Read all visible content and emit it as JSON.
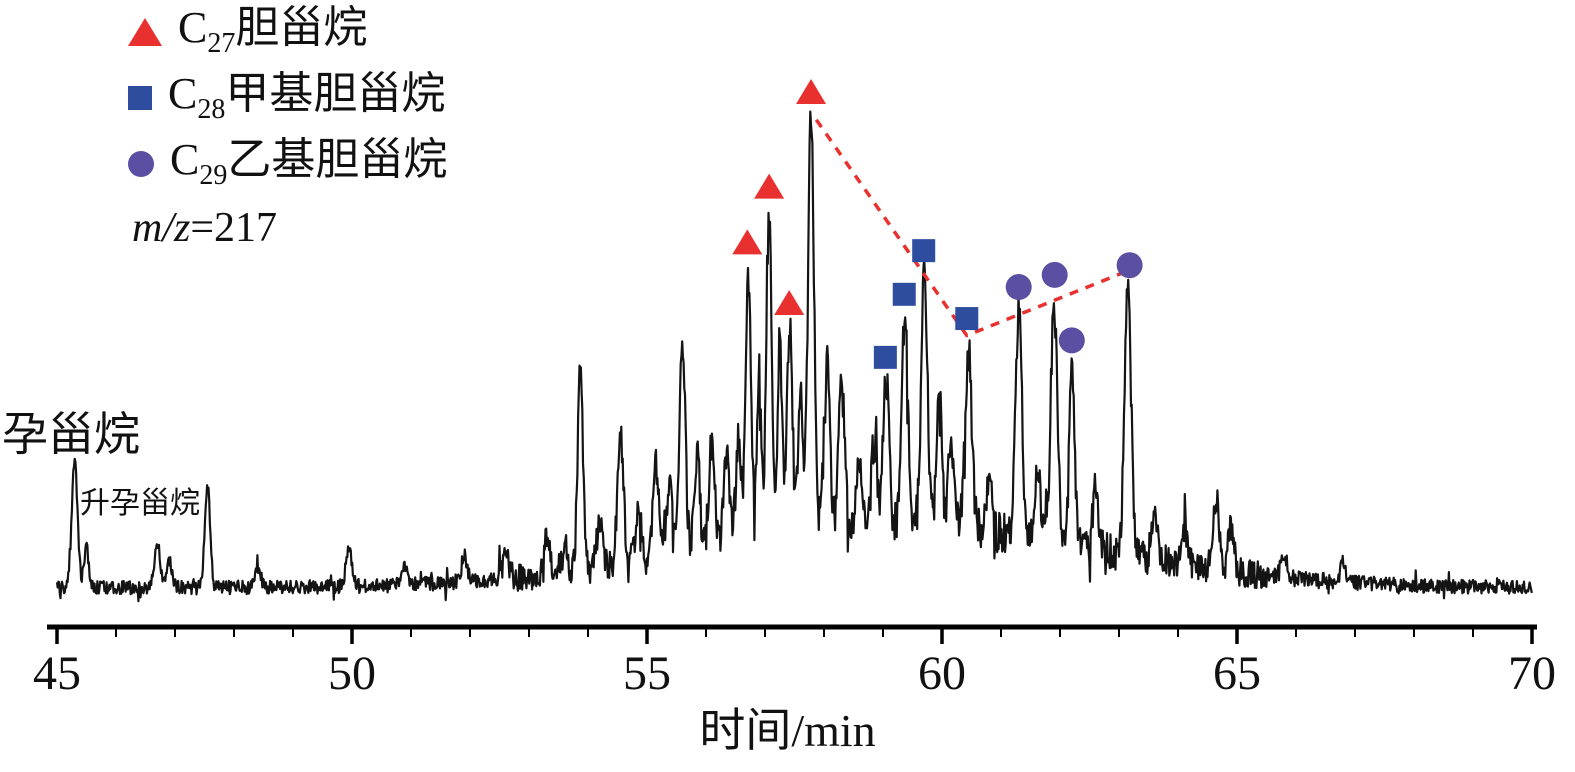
{
  "page": {
    "background": "#ffffff"
  },
  "legend": {
    "items": [
      {
        "marker": "triangle",
        "color": "#e8312f",
        "prefix": "C",
        "sub": "27",
        "name": "胆甾烷"
      },
      {
        "marker": "square",
        "color": "#2e4d9e",
        "prefix": "C",
        "sub": "28",
        "name": "甲基胆甾烷"
      },
      {
        "marker": "circle",
        "color": "#5a4fa2",
        "prefix": "C",
        "sub": "29",
        "name": "乙基胆甾烷"
      }
    ],
    "mz": {
      "italic": "m/z",
      "rest": "=217"
    }
  },
  "chart_data": {
    "type": "line",
    "title": "",
    "xlabel": "时间/min",
    "ylabel": "",
    "x_range": [
      45,
      70
    ],
    "x_ticks": [
      45,
      50,
      55,
      60,
      65,
      70
    ],
    "y_axis_shown": false,
    "grid": false,
    "trace_color": "#141414",
    "axis_color": "#000000",
    "annotations": [
      {
        "text": "孕甾烷",
        "t": 45.3
      },
      {
        "text": "升孕甾烷",
        "t": 45.75
      }
    ],
    "baseline": 1.5,
    "broad_hump": {
      "center": 59.3,
      "amplitude": 13,
      "sigma": 3.4
    },
    "noise_amplitude": 1.4,
    "peaks": [
      [
        45.3,
        26,
        0.05
      ],
      [
        45.5,
        8,
        0.04
      ],
      [
        46.7,
        9,
        0.05
      ],
      [
        46.9,
        6,
        0.04
      ],
      [
        47.55,
        21,
        0.045
      ],
      [
        48.4,
        4,
        0.05
      ],
      [
        49.95,
        8,
        0.05
      ],
      [
        50.9,
        4,
        0.05
      ],
      [
        51.9,
        5,
        0.05
      ],
      [
        52.6,
        5,
        0.05
      ],
      [
        53.3,
        7,
        0.05
      ],
      [
        53.6,
        6,
        0.05
      ],
      [
        53.87,
        42,
        0.045
      ],
      [
        54.2,
        10,
        0.05
      ],
      [
        54.55,
        27,
        0.05
      ],
      [
        54.85,
        12,
        0.045
      ],
      [
        55.15,
        19,
        0.05
      ],
      [
        55.38,
        16,
        0.045
      ],
      [
        55.6,
        43,
        0.05
      ],
      [
        55.85,
        20,
        0.045
      ],
      [
        56.1,
        22,
        0.05
      ],
      [
        56.35,
        18,
        0.05
      ],
      [
        56.55,
        21,
        0.045
      ],
      [
        56.72,
        54,
        0.045
      ],
      [
        56.9,
        34,
        0.04
      ],
      [
        57.07,
        67,
        0.045
      ],
      [
        57.25,
        38,
        0.04
      ],
      [
        57.42,
        44,
        0.045
      ],
      [
        57.6,
        30,
        0.04
      ],
      [
        57.78,
        86,
        0.05
      ],
      [
        58.05,
        34,
        0.05
      ],
      [
        58.3,
        29,
        0.05
      ],
      [
        58.6,
        15,
        0.045
      ],
      [
        58.85,
        17,
        0.045
      ],
      [
        59.05,
        31,
        0.05
      ],
      [
        59.37,
        44,
        0.05
      ],
      [
        59.7,
        54,
        0.05
      ],
      [
        59.95,
        28,
        0.045
      ],
      [
        60.15,
        18,
        0.045
      ],
      [
        60.45,
        37,
        0.055
      ],
      [
        60.8,
        12,
        0.045
      ],
      [
        61.3,
        46,
        0.055
      ],
      [
        61.62,
        16,
        0.045
      ],
      [
        61.9,
        49,
        0.055
      ],
      [
        62.2,
        37,
        0.05
      ],
      [
        62.6,
        12,
        0.045
      ],
      [
        63.15,
        55,
        0.055
      ],
      [
        63.6,
        11,
        0.045
      ],
      [
        64.1,
        8,
        0.05
      ],
      [
        64.65,
        15,
        0.05
      ],
      [
        64.9,
        10,
        0.045
      ],
      [
        65.8,
        5,
        0.05
      ],
      [
        66.8,
        4,
        0.05
      ]
    ],
    "series_markers": [
      {
        "name": "C27胆甾烷",
        "marker": "triangle",
        "color": "#e8312f",
        "points": [
          [
            56.7,
            72.5
          ],
          [
            57.07,
            84.0
          ],
          [
            57.41,
            60.0
          ],
          [
            57.78,
            103.5
          ]
        ]
      },
      {
        "name": "C28甲基胆甾烷",
        "marker": "square",
        "color": "#2e4d9e",
        "points": [
          [
            59.04,
            49.0
          ],
          [
            59.36,
            62.0
          ],
          [
            59.69,
            71.0
          ],
          [
            60.42,
            57.0
          ]
        ]
      },
      {
        "name": "C29乙基胆甾烷",
        "marker": "circle",
        "color": "#5a4fa2",
        "points": [
          [
            61.3,
            63.5
          ],
          [
            61.91,
            66.0
          ],
          [
            62.2,
            52.5
          ],
          [
            63.18,
            68.0
          ]
        ]
      }
    ],
    "dashed_line": {
      "color": "#e8312f",
      "points": [
        [
          57.87,
          98.0
        ],
        [
          60.42,
          53.5
        ],
        [
          63.18,
          67.0
        ]
      ]
    }
  }
}
